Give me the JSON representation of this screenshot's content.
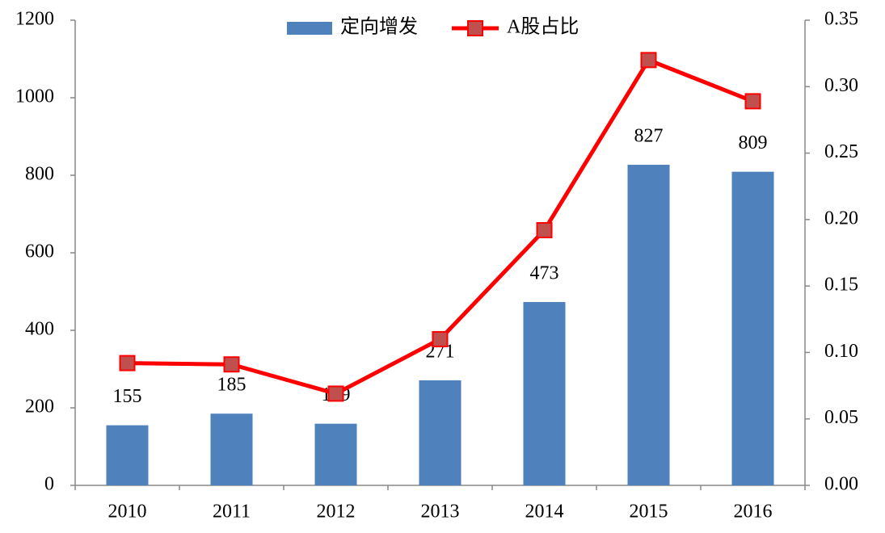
{
  "chart_data": {
    "type": "bar",
    "categories": [
      "2010",
      "2011",
      "2012",
      "2013",
      "2014",
      "2015",
      "2016"
    ],
    "series": [
      {
        "name": "定向增发",
        "type": "bar",
        "color": "#4f81bd",
        "values": [
          155,
          185,
          159,
          271,
          473,
          827,
          809
        ]
      },
      {
        "name": "A股占比",
        "type": "line",
        "axis": "y2",
        "color": "#ff0000",
        "marker_color": "#c0504d",
        "values": [
          0.092,
          0.091,
          0.069,
          0.11,
          0.192,
          0.32,
          0.289
        ]
      }
    ],
    "ylim": [
      0,
      1200
    ],
    "yticks": [
      0,
      200,
      400,
      600,
      800,
      1000,
      1200
    ],
    "y2lim": [
      0,
      0.35
    ],
    "y2ticks": [
      {
        "value": 0,
        "label": "0.00"
      },
      {
        "value": 0.05,
        "label": "0.05"
      },
      {
        "value": 0.1,
        "label": "0.10"
      },
      {
        "value": 0.15,
        "label": "0.15"
      },
      {
        "value": 0.2,
        "label": "0.20"
      },
      {
        "value": 0.25,
        "label": "0.25"
      },
      {
        "value": 0.3,
        "label": "0.30"
      },
      {
        "value": 0.35,
        "label": "0.35"
      }
    ],
    "grid": false,
    "legend": "top"
  }
}
